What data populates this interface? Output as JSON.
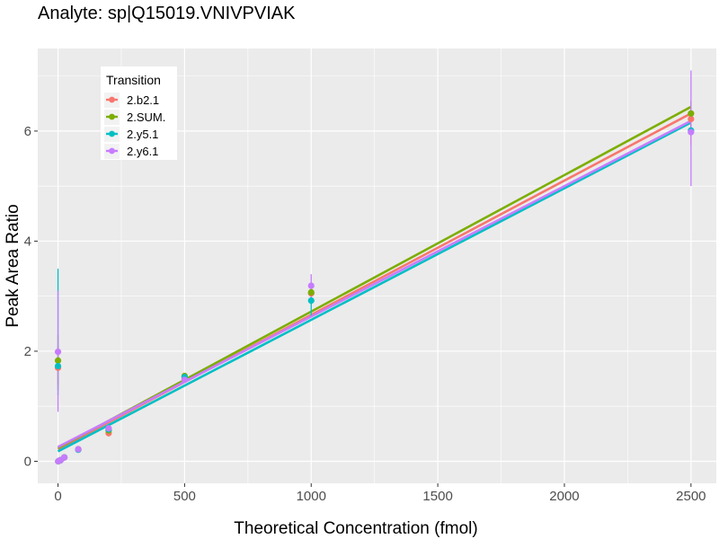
{
  "chart_data": {
    "type": "scatter",
    "title": "Analyte: sp|Q15019.VNIVPVIAK",
    "xlabel": "Theoretical Concentration (fmol)",
    "ylabel": "Peak Area Ratio",
    "xlim": [
      -80,
      2600
    ],
    "ylim": [
      -0.4,
      7.5
    ],
    "x_ticks": [
      0,
      500,
      1000,
      1500,
      2000,
      2500
    ],
    "y_ticks": [
      0,
      2,
      4,
      6
    ],
    "grid": true,
    "legend": {
      "title": "Transition",
      "position": "top-left"
    },
    "series": [
      {
        "name": "2.b2.1",
        "color": "#F8766D",
        "points": [
          {
            "x": 0,
            "y": 1.7,
            "err": [
              1.4,
              2.1
            ]
          },
          {
            "x": 1,
            "y": 0.0
          },
          {
            "x": 5,
            "y": 0.01
          },
          {
            "x": 10,
            "y": 0.02
          },
          {
            "x": 25,
            "y": 0.07
          },
          {
            "x": 80,
            "y": 0.21
          },
          {
            "x": 200,
            "y": 0.51
          },
          {
            "x": 500,
            "y": 1.5
          },
          {
            "x": 1000,
            "y": 3.05,
            "err": [
              2.85,
              3.25
            ]
          },
          {
            "x": 2500,
            "y": 6.22,
            "err": [
              5.75,
              6.45
            ]
          }
        ],
        "fit": {
          "intercept": 0.22,
          "slope": 0.00244
        }
      },
      {
        "name": "2.SUM.",
        "color": "#7CAE00",
        "points": [
          {
            "x": 0,
            "y": 1.83,
            "err": [
              1.3,
              2.3
            ]
          },
          {
            "x": 1,
            "y": 0.0
          },
          {
            "x": 5,
            "y": 0.01
          },
          {
            "x": 10,
            "y": 0.02
          },
          {
            "x": 25,
            "y": 0.07
          },
          {
            "x": 80,
            "y": 0.22
          },
          {
            "x": 200,
            "y": 0.56
          },
          {
            "x": 500,
            "y": 1.55
          },
          {
            "x": 1000,
            "y": 3.07,
            "err": [
              2.85,
              3.25
            ]
          },
          {
            "x": 2500,
            "y": 6.32,
            "err": [
              5.9,
              6.55
            ]
          }
        ],
        "fit": {
          "intercept": 0.24,
          "slope": 0.00248
        }
      },
      {
        "name": "2.y5.1",
        "color": "#00BFC4",
        "points": [
          {
            "x": 0,
            "y": 1.73,
            "err": [
              1.2,
              3.5
            ]
          },
          {
            "x": 1,
            "y": 0.0
          },
          {
            "x": 5,
            "y": 0.01
          },
          {
            "x": 10,
            "y": 0.02
          },
          {
            "x": 25,
            "y": 0.07
          },
          {
            "x": 80,
            "y": 0.21
          },
          {
            "x": 200,
            "y": 0.58
          },
          {
            "x": 500,
            "y": 1.53
          },
          {
            "x": 1000,
            "y": 2.92,
            "err": [
              2.65,
              3.05
            ]
          },
          {
            "x": 2500,
            "y": 6.01,
            "err": [
              5.95,
              6.1
            ]
          }
        ],
        "fit": {
          "intercept": 0.18,
          "slope": 0.00239
        }
      },
      {
        "name": "2.y6.1",
        "color": "#C77CFF",
        "points": [
          {
            "x": 0,
            "y": 1.99,
            "err": [
              0.9,
              3.1
            ]
          },
          {
            "x": 1,
            "y": 0.0
          },
          {
            "x": 5,
            "y": 0.01
          },
          {
            "x": 10,
            "y": 0.02
          },
          {
            "x": 25,
            "y": 0.07
          },
          {
            "x": 80,
            "y": 0.22
          },
          {
            "x": 200,
            "y": 0.6
          },
          {
            "x": 500,
            "y": 1.48
          },
          {
            "x": 1000,
            "y": 3.19,
            "err": [
              2.9,
              3.4
            ]
          },
          {
            "x": 2500,
            "y": 5.98,
            "err": [
              5.0,
              7.1
            ]
          }
        ],
        "fit": {
          "intercept": 0.26,
          "slope": 0.00237
        }
      }
    ]
  }
}
